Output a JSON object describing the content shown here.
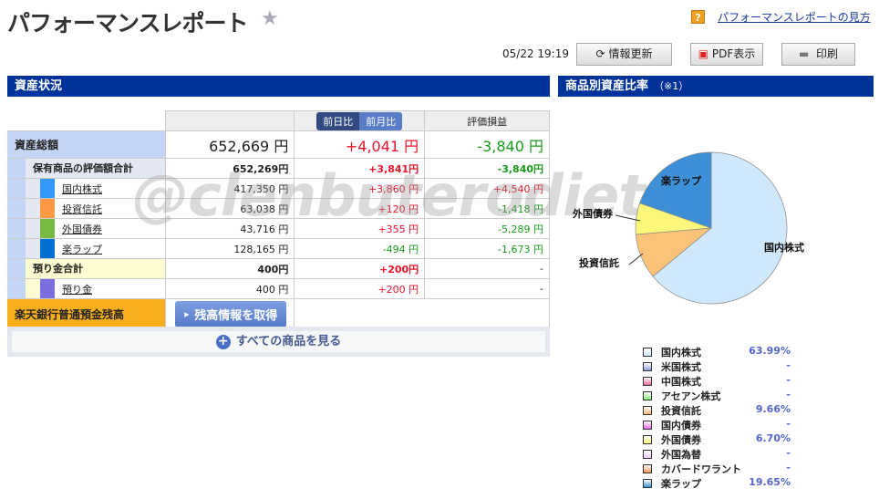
{
  "header": {
    "title": "パフォーマンスレポート",
    "help_link": "パフォーマンスレポートの見方",
    "timestamp": "05/22 19:19",
    "refresh": "情報更新",
    "pdf": "PDF表示",
    "print": "印刷"
  },
  "watermark": "@clenbuterodiet",
  "assets": {
    "section": "資産状況",
    "tab_day": "前日比",
    "tab_month": "前月比",
    "pl_header": "評価損益",
    "total": {
      "label": "資産総額",
      "value": "652,669 円",
      "diff": "+4,041 円",
      "pl": "-3,840 円"
    },
    "holdings": {
      "label": "保有商品の評価額合計",
      "value": "652,269円",
      "diff": "+3,841円",
      "pl": "-3,840円"
    },
    "items": [
      {
        "label": "国内株式",
        "value": "417,350 円",
        "diff": "+3,860 円",
        "pl": "+4,540 円",
        "color": "#3399ff"
      },
      {
        "label": "投資信託",
        "value": "63,038 円",
        "diff": "+120 円",
        "pl": "-1,418 円",
        "color": "#ff9944"
      },
      {
        "label": "外国債券",
        "value": "43,716 円",
        "diff": "+355 円",
        "pl": "-5,289 円",
        "color": "#77bb44"
      },
      {
        "label": "楽ラップ",
        "value": "128,165 円",
        "diff": "-494 円",
        "pl": "-1,673 円",
        "color": "#0070d0"
      }
    ],
    "deposit_total": {
      "label": "預り金合計",
      "value": "400円",
      "diff": "+200円",
      "pl": "-"
    },
    "deposit": {
      "label": "預り金",
      "value": "400 円",
      "diff": "+200 円",
      "pl": "-",
      "color": "#7b6fe0"
    },
    "bank": {
      "label": "楽天銀行普通預金残高",
      "button": "残高情報を取得"
    },
    "all_button": "すべての商品を見る"
  },
  "ratio": {
    "section": "商品別資産比率",
    "note": "（※1）"
  },
  "chart_data": {
    "type": "pie",
    "slices": [
      {
        "name": "国内株式",
        "value": 63.99,
        "color": "#cfe8fb"
      },
      {
        "name": "投資信託",
        "value": 9.66,
        "color": "#fbc27a"
      },
      {
        "name": "外国債券",
        "value": 6.7,
        "color": "#fbf77a"
      },
      {
        "name": "楽ラップ",
        "value": 19.65,
        "color": "#3d8fd8"
      }
    ]
  },
  "legend": [
    {
      "name": "国内株式",
      "pct": "63.99%",
      "color": "#cfe8fb"
    },
    {
      "name": "米国株式",
      "pct": "-",
      "color": "#8c9be0"
    },
    {
      "name": "中国株式",
      "pct": "-",
      "color": "#f56aa0"
    },
    {
      "name": "アセアン株式",
      "pct": "-",
      "color": "#88ee77"
    },
    {
      "name": "投資信託",
      "pct": "9.66%",
      "color": "#fbb768"
    },
    {
      "name": "国内債券",
      "pct": "-",
      "color": "#ee66ee"
    },
    {
      "name": "外国債券",
      "pct": "6.70%",
      "color": "#fbf77a"
    },
    {
      "name": "外国為替",
      "pct": "-",
      "color": "#e8c8f8"
    },
    {
      "name": "カバードワラント",
      "pct": "-",
      "color": "#fb8f55"
    },
    {
      "name": "楽ラップ",
      "pct": "19.65%",
      "color": "#3d8fd8"
    }
  ]
}
